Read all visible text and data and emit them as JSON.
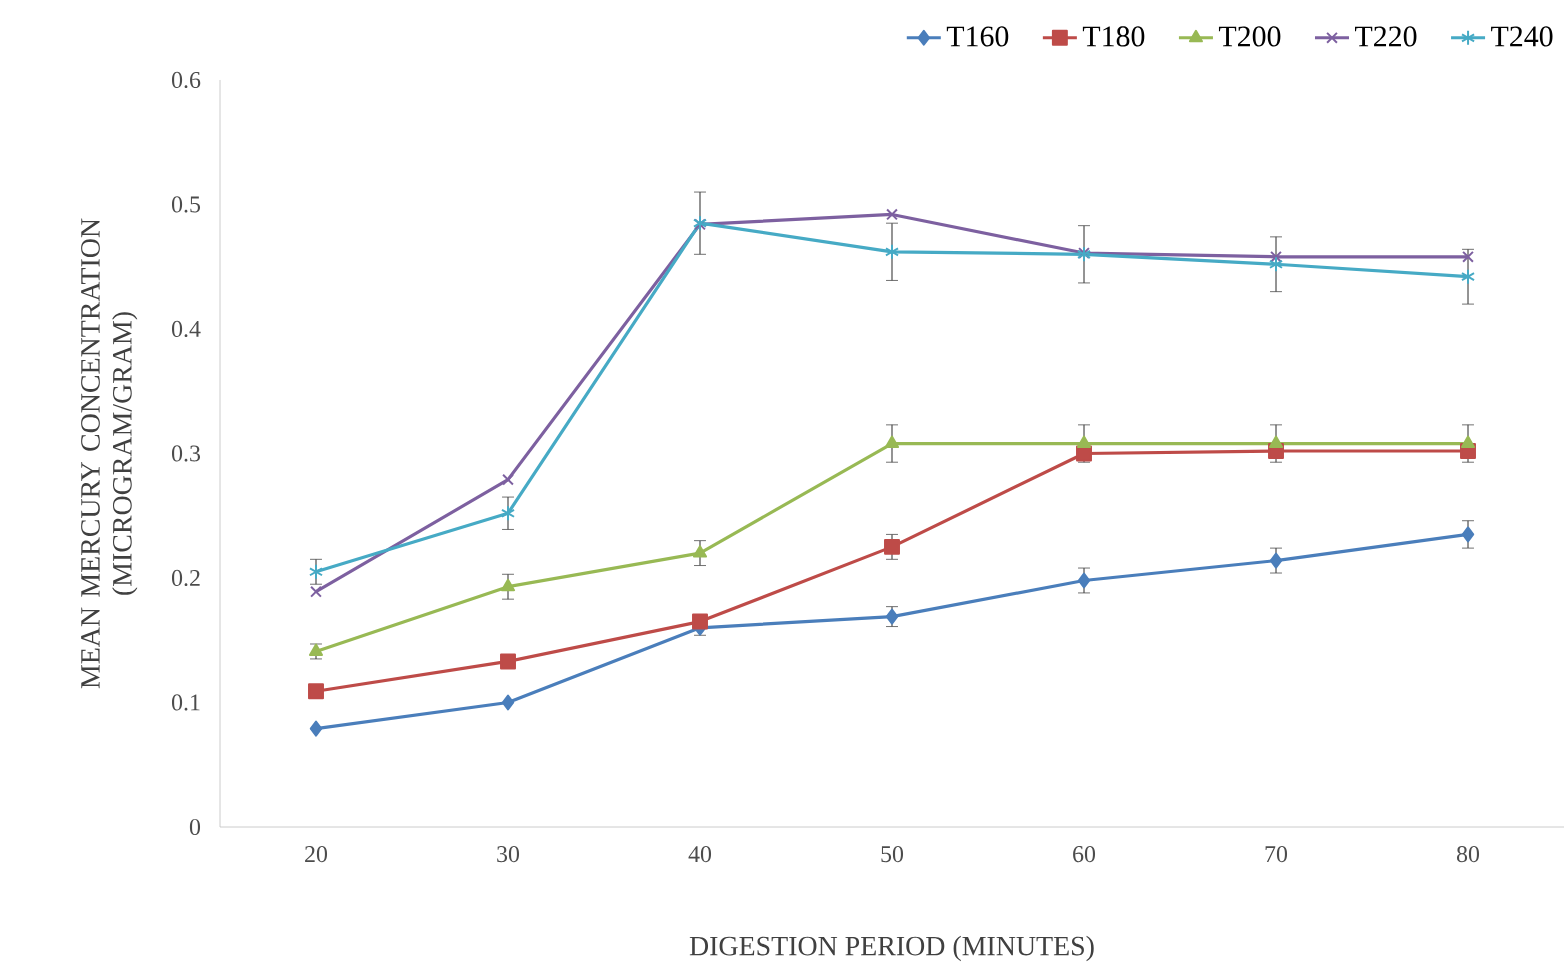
{
  "chart_data": {
    "type": "line",
    "xlabel": "DIGESTION PERIOD (MINUTES)",
    "ylabel": "MEAN MERCURY CONCENTRATION (MICROGRAM/GRAM)",
    "categories": [
      "20",
      "30",
      "40",
      "50",
      "60",
      "70",
      "80"
    ],
    "series": [
      {
        "name": "T160",
        "color": "#4a7ebb",
        "marker": "diamond",
        "values": [
          0.079,
          0.1,
          0.16,
          0.169,
          0.198,
          0.214,
          0.235
        ],
        "errors": [
          null,
          null,
          0.006,
          0.008,
          0.01,
          0.01,
          0.011
        ]
      },
      {
        "name": "T180",
        "color": "#be4b48",
        "marker": "square",
        "values": [
          0.109,
          0.133,
          0.165,
          0.225,
          0.3,
          0.302,
          0.302
        ],
        "errors": [
          null,
          null,
          null,
          0.01,
          null,
          null,
          null
        ]
      },
      {
        "name": "T200",
        "color": "#98b954",
        "marker": "triangle",
        "values": [
          0.141,
          0.193,
          0.22,
          0.308,
          0.308,
          0.308,
          0.308
        ],
        "errors": [
          0.006,
          0.01,
          0.01,
          0.015,
          0.015,
          0.015,
          0.015
        ]
      },
      {
        "name": "T220",
        "color": "#7d60a0",
        "marker": "cross",
        "values": [
          0.189,
          0.279,
          0.484,
          0.492,
          0.461,
          0.458,
          0.458
        ]
      },
      {
        "name": "T240",
        "color": "#46aac5",
        "marker": "cross",
        "values": [
          0.205,
          0.252,
          0.485,
          0.462,
          0.46,
          0.452,
          0.442
        ],
        "errors": [
          0.01,
          0.013,
          0.025,
          0.023,
          0.023,
          0.022,
          0.022
        ]
      }
    ],
    "ylim": [
      0,
      0.6
    ],
    "yticks": [
      0,
      0.1,
      0.2,
      0.3,
      0.4,
      0.5,
      0.6
    ],
    "grid": false,
    "legend": "top right",
    "line_style": "solid"
  }
}
